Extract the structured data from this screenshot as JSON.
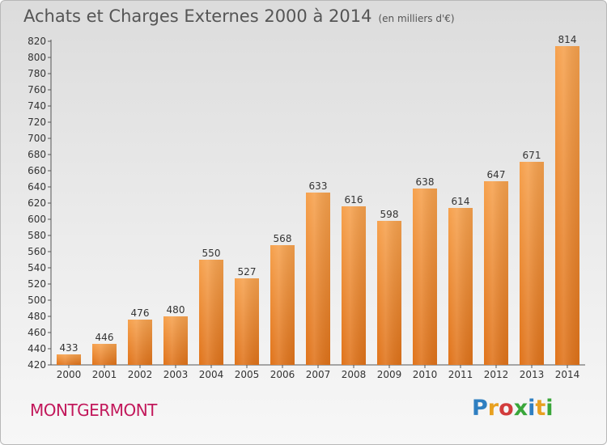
{
  "title": "Achats et Charges Externes 2000 à 2014",
  "unit": "(en milliers d'€)",
  "commune": "MONTGERMONT",
  "logo": "Proxiti",
  "chart_data": {
    "type": "bar",
    "categories": [
      "2000",
      "2001",
      "2002",
      "2003",
      "2004",
      "2005",
      "2006",
      "2007",
      "2008",
      "2009",
      "2010",
      "2011",
      "2012",
      "2013",
      "2014"
    ],
    "values": [
      433,
      446,
      476,
      480,
      550,
      527,
      568,
      633,
      616,
      598,
      638,
      614,
      647,
      671,
      814
    ],
    "ylim": [
      420,
      820
    ],
    "yticks": [
      420,
      440,
      460,
      480,
      500,
      520,
      540,
      560,
      580,
      600,
      620,
      640,
      660,
      680,
      700,
      720,
      740,
      760,
      780,
      800,
      820
    ],
    "grid": false,
    "bar_color": "#f08a2c"
  }
}
